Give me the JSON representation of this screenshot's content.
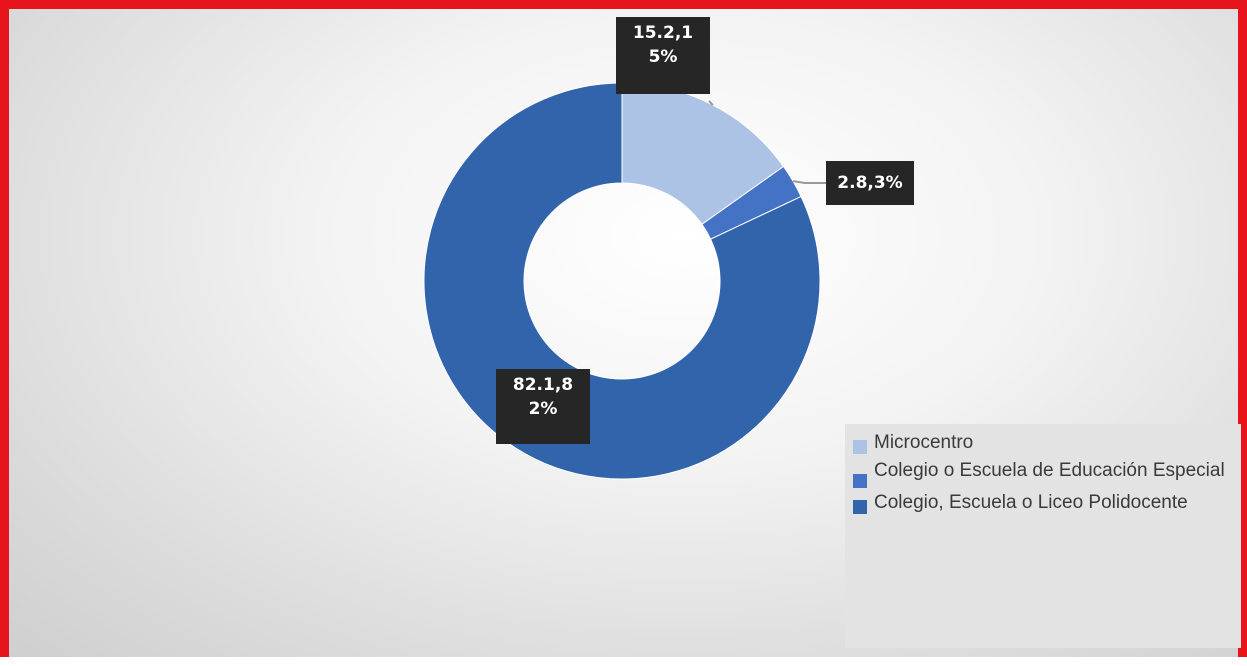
{
  "chart_data": {
    "type": "pie",
    "variant": "donut",
    "categories": [
      "Microcentro",
      "Colegio o Escuela de Educación Especial",
      "Colegio, Escuela o Liceo Polidocente"
    ],
    "values": [
      15.2,
      2.8,
      82.1
    ],
    "data_labels": [
      "15.2,15%",
      "2.8,3%",
      "82.1,82%"
    ],
    "colors": [
      "#adc3e6",
      "#4472c4",
      "#3264ab"
    ],
    "legend_position": "bottom-right",
    "title": ""
  }
}
